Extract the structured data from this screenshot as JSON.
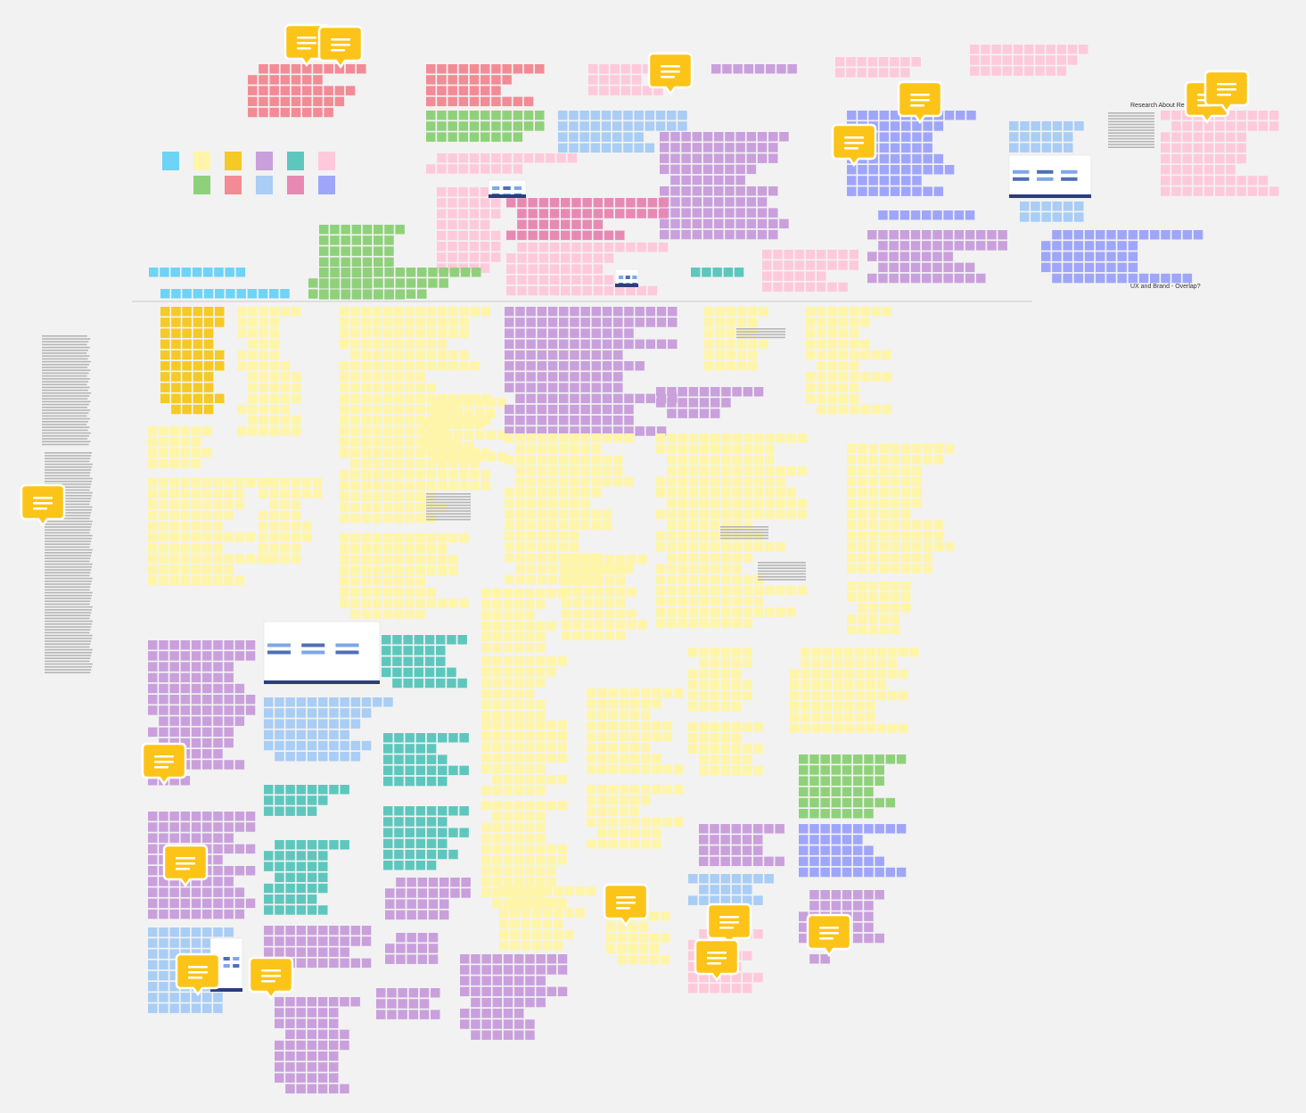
{
  "labels": [
    "Research About Res",
    "UX and Brand - Overlap?"
  ]
}
